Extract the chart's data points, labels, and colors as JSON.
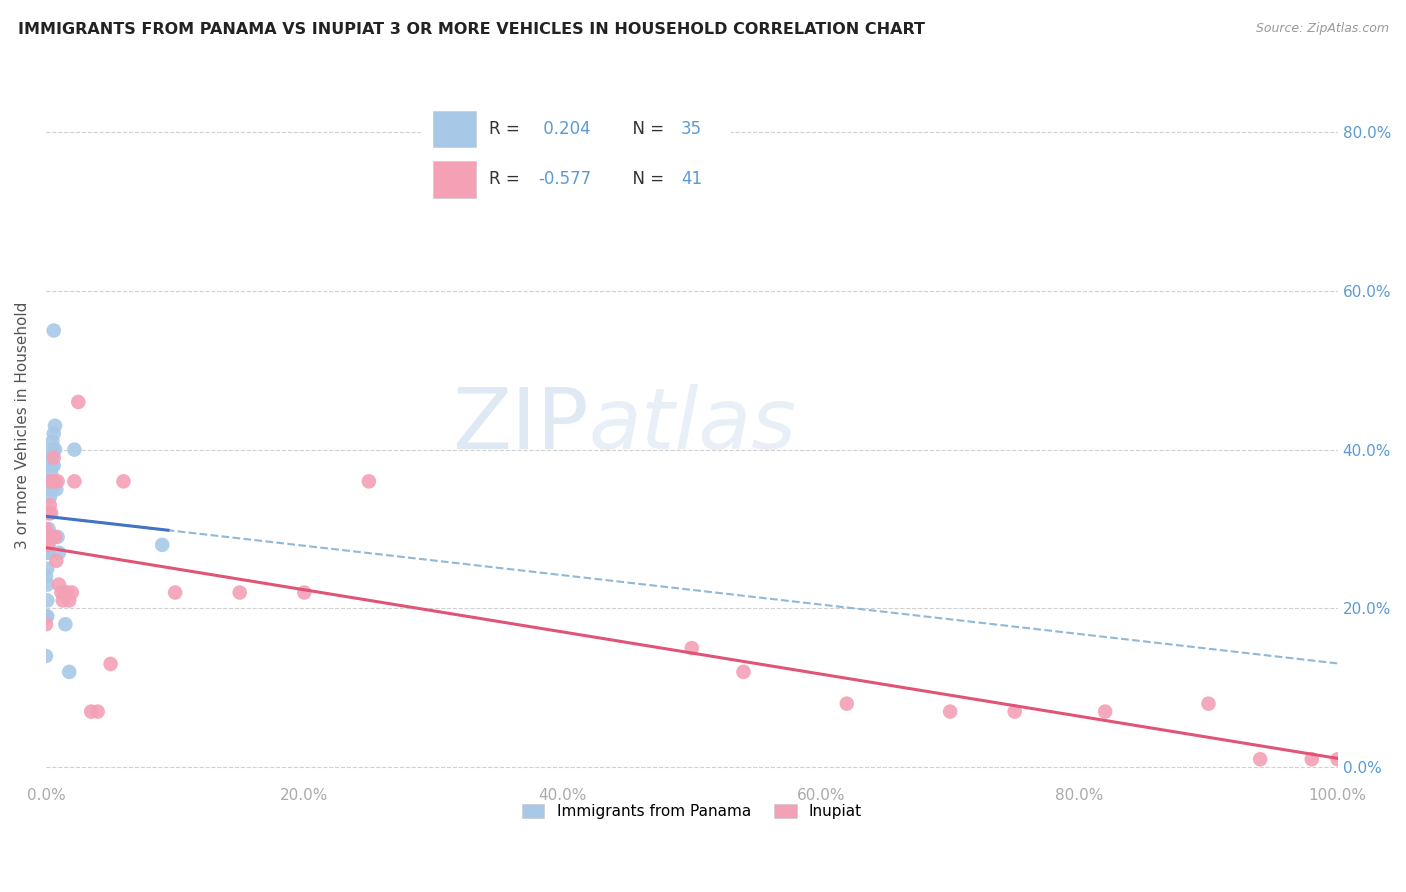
{
  "title": "IMMIGRANTS FROM PANAMA VS INUPIAT 3 OR MORE VEHICLES IN HOUSEHOLD CORRELATION CHART",
  "source": "Source: ZipAtlas.com",
  "ylabel": "3 or more Vehicles in Household",
  "xlim": [
    0.0,
    1.0
  ],
  "ylim": [
    -0.02,
    0.88
  ],
  "yticks": [
    0.0,
    0.2,
    0.4,
    0.6,
    0.8
  ],
  "xticks": [
    0.0,
    0.2,
    0.4,
    0.6,
    0.8,
    1.0
  ],
  "legend_r1_text": "R =  0.204   N = 35",
  "legend_r2_text": "R = -0.577   N = 41",
  "panama_color": "#a8c8e8",
  "inupiat_color": "#f4a0b5",
  "panama_line_color": "#4472c4",
  "inupiat_line_color": "#e05575",
  "panama_dashed_color": "#90b8d8",
  "right_tick_color": "#5b9bd5",
  "bottom_tick_color": "#aaaaaa",
  "watermark_color": "#c5d8ec",
  "panama_x": [
    0.0,
    0.0,
    0.0,
    0.001,
    0.001,
    0.001,
    0.001,
    0.001,
    0.002,
    0.002,
    0.002,
    0.002,
    0.003,
    0.003,
    0.003,
    0.003,
    0.004,
    0.004,
    0.004,
    0.005,
    0.005,
    0.005,
    0.005,
    0.006,
    0.006,
    0.006,
    0.007,
    0.007,
    0.008,
    0.009,
    0.01,
    0.015,
    0.018,
    0.022,
    0.09
  ],
  "panama_y": [
    0.24,
    0.19,
    0.14,
    0.27,
    0.25,
    0.23,
    0.21,
    0.19,
    0.36,
    0.32,
    0.3,
    0.27,
    0.36,
    0.34,
    0.32,
    0.29,
    0.39,
    0.37,
    0.35,
    0.41,
    0.4,
    0.38,
    0.36,
    0.55,
    0.42,
    0.38,
    0.43,
    0.4,
    0.35,
    0.29,
    0.27,
    0.18,
    0.12,
    0.4,
    0.28
  ],
  "inupiat_x": [
    0.0,
    0.0,
    0.001,
    0.001,
    0.002,
    0.003,
    0.003,
    0.004,
    0.005,
    0.006,
    0.007,
    0.007,
    0.008,
    0.009,
    0.01,
    0.012,
    0.013,
    0.015,
    0.016,
    0.018,
    0.02,
    0.022,
    0.025,
    0.035,
    0.04,
    0.05,
    0.06,
    0.1,
    0.15,
    0.2,
    0.25,
    0.5,
    0.54,
    0.62,
    0.7,
    0.75,
    0.82,
    0.9,
    0.94,
    0.98,
    1.0
  ],
  "inupiat_y": [
    0.3,
    0.18,
    0.32,
    0.28,
    0.28,
    0.36,
    0.33,
    0.32,
    0.29,
    0.39,
    0.36,
    0.29,
    0.26,
    0.36,
    0.23,
    0.22,
    0.21,
    0.22,
    0.22,
    0.21,
    0.22,
    0.36,
    0.46,
    0.07,
    0.07,
    0.13,
    0.36,
    0.22,
    0.22,
    0.22,
    0.36,
    0.15,
    0.12,
    0.08,
    0.07,
    0.07,
    0.07,
    0.08,
    0.01,
    0.01,
    0.01
  ]
}
